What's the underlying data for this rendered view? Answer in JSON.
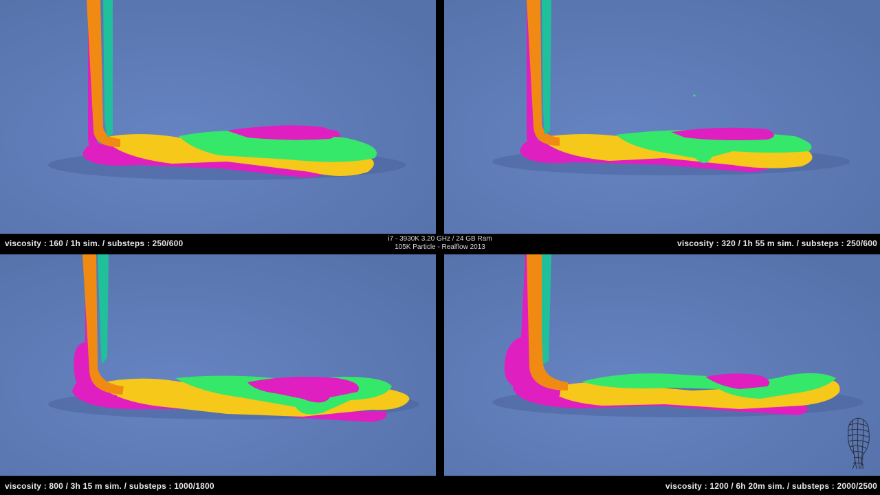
{
  "panels": [
    {
      "caption": "viscosity : 160 / 1h sim. / substeps : 250/600"
    },
    {
      "caption": "viscosity : 320 / 1h 55 m sim. / substeps : 250/600"
    },
    {
      "caption": "viscosity : 800 / 3h 15 m sim. / substeps : 1000/1800"
    },
    {
      "caption": "viscosity : 1200 / 6h 20m sim. / substeps : 2000/2500"
    }
  ],
  "info": {
    "line1": "i7 - 3930K 3.20 GHz / 24 GB Ram",
    "line2": "105K Particle - Realflow 2013"
  },
  "colors": {
    "background": "#5f7bb7",
    "magenta": "#e01fc0",
    "orange": "#f08a12",
    "teal": "#1fc09a",
    "yellow": "#f5c81a",
    "green": "#35e86a"
  },
  "icons": {
    "logo": "mesh-head-logo-icon"
  }
}
